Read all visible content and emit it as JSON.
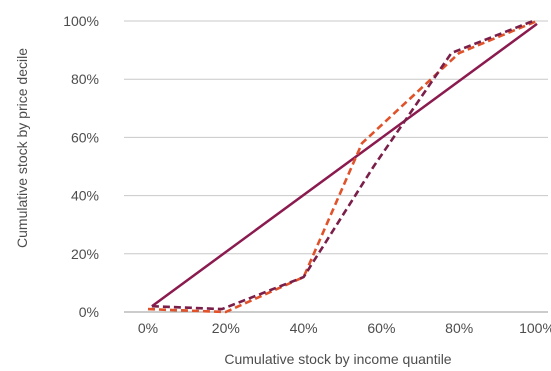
{
  "chart_data": {
    "type": "line",
    "title": "",
    "xlabel": "Cumulative stock by income quantile",
    "ylabel": "Cumulative stock by price decile",
    "x_ticks": [
      "0%",
      "20%",
      "40%",
      "60%",
      "80%",
      "100%"
    ],
    "y_ticks": [
      "0%",
      "20%",
      "40%",
      "60%",
      "80%",
      "100%"
    ],
    "xlim": [
      0,
      100
    ],
    "ylim": [
      0,
      100
    ],
    "grid": "horizontal",
    "legend": "none",
    "series": [
      {
        "style": "solid",
        "color": "#8b1a4f",
        "points": [
          [
            1,
            2
          ],
          [
            100,
            99
          ]
        ]
      },
      {
        "style": "dashed",
        "color": "#e0522a",
        "points": [
          [
            0,
            1
          ],
          [
            20,
            0
          ],
          [
            40,
            12
          ],
          [
            55,
            58
          ],
          [
            80,
            89
          ],
          [
            100,
            100
          ]
        ]
      },
      {
        "style": "dashed",
        "color": "#7a1e4a",
        "points": [
          [
            1,
            2
          ],
          [
            19,
            1
          ],
          [
            40,
            12
          ],
          [
            58,
            50
          ],
          [
            78,
            89
          ],
          [
            99,
            100
          ]
        ]
      }
    ]
  }
}
